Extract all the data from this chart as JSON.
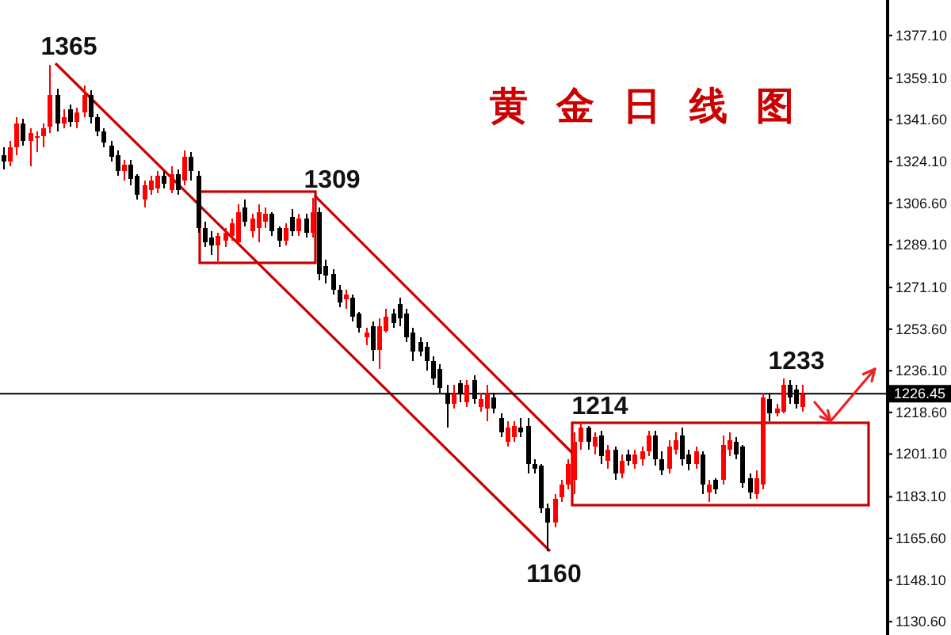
{
  "chart_data": {
    "type": "candlestick",
    "title": "黄金日线图",
    "categories": [
      null,
      null,
      null,
      null,
      null,
      null,
      null,
      null,
      null,
      null,
      null,
      null,
      null,
      null,
      null,
      null,
      null,
      null,
      null,
      null,
      null,
      null,
      null,
      null,
      null,
      null,
      null,
      null,
      null,
      null,
      null,
      null,
      null,
      null,
      null,
      null,
      null,
      null,
      null,
      null,
      null,
      null,
      null,
      null,
      null,
      null,
      null,
      null,
      null,
      null,
      null,
      null,
      null,
      null,
      null,
      null,
      null,
      null,
      null,
      null,
      null,
      null,
      null,
      null,
      null,
      null,
      null,
      null,
      null,
      null,
      null,
      null,
      null,
      null,
      null,
      null,
      null,
      null,
      null,
      null,
      null,
      null,
      null,
      null,
      null,
      null,
      null,
      null,
      null,
      null,
      null,
      null,
      null,
      null,
      null,
      null,
      null,
      null,
      null,
      null,
      null,
      null,
      null,
      null,
      null,
      null,
      null,
      null,
      null,
      null,
      null,
      null,
      null,
      null,
      null,
      null,
      null,
      null,
      null,
      null,
      null,
      null,
      null,
      null,
      null,
      null,
      null,
      null,
      null,
      null,
      null,
      null
    ],
    "ohlc": [
      [
        1327,
        1330,
        1321,
        1324
      ],
      [
        1324,
        1333,
        1322,
        1330
      ],
      [
        1330,
        1343,
        1327,
        1340
      ],
      [
        1340,
        1342,
        1331,
        1333
      ],
      [
        1333,
        1338,
        1322,
        1336
      ],
      [
        1334,
        1337,
        1328,
        1335
      ],
      [
        1335,
        1340,
        1330,
        1338
      ],
      [
        1339,
        1365,
        1336,
        1352
      ],
      [
        1352,
        1355,
        1337,
        1340
      ],
      [
        1340,
        1346,
        1338,
        1343
      ],
      [
        1346,
        1348,
        1339,
        1341
      ],
      [
        1341,
        1347,
        1338,
        1345
      ],
      [
        1345,
        1356,
        1343,
        1352
      ],
      [
        1352,
        1354,
        1340,
        1343
      ],
      [
        1343,
        1344,
        1335,
        1337
      ],
      [
        1337,
        1338,
        1330,
        1332
      ],
      [
        1331,
        1333,
        1324,
        1326
      ],
      [
        1327,
        1329,
        1318,
        1320
      ],
      [
        1320,
        1325,
        1316,
        1323
      ],
      [
        1323,
        1325,
        1314,
        1317
      ],
      [
        1318,
        1319,
        1308,
        1310
      ],
      [
        1308,
        1316,
        1305,
        1314
      ],
      [
        1312,
        1318,
        1310,
        1316
      ],
      [
        1313,
        1320,
        1311,
        1318
      ],
      [
        1318,
        1320,
        1313,
        1315
      ],
      [
        1312,
        1322,
        1311,
        1319
      ],
      [
        1319,
        1321,
        1310,
        1312
      ],
      [
        1316,
        1329,
        1314,
        1326
      ],
      [
        1326,
        1328,
        1316,
        1320
      ],
      [
        1318,
        1320,
        1294,
        1296
      ],
      [
        1296,
        1299,
        1288,
        1290
      ],
      [
        1292,
        1295,
        1285,
        1289
      ],
      [
        1289,
        1294,
        1282,
        1293
      ],
      [
        1291,
        1296,
        1288,
        1294
      ],
      [
        1293,
        1300,
        1291,
        1298
      ],
      [
        1290,
        1306,
        1289,
        1303
      ],
      [
        1305,
        1308,
        1297,
        1299
      ],
      [
        1295,
        1302,
        1292,
        1300
      ],
      [
        1296,
        1306,
        1290,
        1303
      ],
      [
        1299,
        1305,
        1296,
        1302
      ],
      [
        1302,
        1303,
        1293,
        1295
      ],
      [
        1296,
        1297,
        1288,
        1291
      ],
      [
        1291,
        1298,
        1289,
        1296
      ],
      [
        1301,
        1304,
        1293,
        1295
      ],
      [
        1295,
        1302,
        1293,
        1300
      ],
      [
        1300,
        1302,
        1292,
        1294
      ],
      [
        1294,
        1309,
        1292,
        1303
      ],
      [
        1303,
        1305,
        1274,
        1277
      ],
      [
        1280,
        1283,
        1273,
        1276
      ],
      [
        1277,
        1279,
        1268,
        1270
      ],
      [
        1270,
        1272,
        1263,
        1265
      ],
      [
        1266,
        1270,
        1262,
        1268
      ],
      [
        1267,
        1268,
        1257,
        1259
      ],
      [
        1260,
        1261,
        1252,
        1254
      ],
      [
        1250,
        1254,
        1247,
        1252
      ],
      [
        1255,
        1257,
        1240,
        1245
      ],
      [
        1245,
        1258,
        1237,
        1255
      ],
      [
        1253,
        1262,
        1252,
        1259
      ],
      [
        1260,
        1262,
        1254,
        1256
      ],
      [
        1264,
        1267,
        1255,
        1258
      ],
      [
        1260,
        1262,
        1248,
        1250
      ],
      [
        1252,
        1254,
        1240,
        1244
      ],
      [
        1248,
        1250,
        1242,
        1244
      ],
      [
        1246,
        1248,
        1236,
        1240
      ],
      [
        1240,
        1242,
        1230,
        1233
      ],
      [
        1237,
        1239,
        1227,
        1229
      ],
      [
        1227,
        1230,
        1212,
        1222
      ],
      [
        1222,
        1230,
        1220,
        1226
      ],
      [
        1231,
        1232,
        1223,
        1226
      ],
      [
        1223,
        1232,
        1221,
        1230
      ],
      [
        1232,
        1234,
        1222,
        1224
      ],
      [
        1221,
        1227,
        1219,
        1224
      ],
      [
        1220,
        1230,
        1215,
        1227
      ],
      [
        1225,
        1227,
        1218,
        1220
      ],
      [
        1216,
        1218,
        1208,
        1210
      ],
      [
        1206,
        1215,
        1204,
        1212
      ],
      [
        1208,
        1215,
        1206,
        1213
      ],
      [
        1212,
        1216,
        1208,
        1210
      ],
      [
        1213,
        1216,
        1193,
        1197
      ],
      [
        1197,
        1199,
        1193,
        1195
      ],
      [
        1196,
        1197,
        1176,
        1178
      ],
      [
        1178,
        1180,
        1160,
        1172
      ],
      [
        1172,
        1184,
        1170,
        1182
      ],
      [
        1183,
        1190,
        1181,
        1188
      ],
      [
        1188,
        1199,
        1186,
        1197
      ],
      [
        1190,
        1210,
        1184,
        1206
      ],
      [
        1206,
        1214,
        1203,
        1212
      ],
      [
        1212,
        1213,
        1203,
        1206
      ],
      [
        1204,
        1210,
        1201,
        1208
      ],
      [
        1209,
        1211,
        1197,
        1200
      ],
      [
        1198,
        1205,
        1195,
        1203
      ],
      [
        1203,
        1204,
        1190,
        1193
      ],
      [
        1193,
        1201,
        1191,
        1198
      ],
      [
        1201,
        1203,
        1196,
        1198
      ],
      [
        1197,
        1203,
        1195,
        1201
      ],
      [
        1199,
        1204,
        1196,
        1202
      ],
      [
        1202,
        1211,
        1200,
        1209
      ],
      [
        1209,
        1211,
        1196,
        1199
      ],
      [
        1199,
        1202,
        1192,
        1194
      ],
      [
        1195,
        1207,
        1193,
        1204
      ],
      [
        1203,
        1210,
        1201,
        1207
      ],
      [
        1209,
        1212,
        1196,
        1199
      ],
      [
        1201,
        1203,
        1194,
        1197
      ],
      [
        1197,
        1204,
        1195,
        1202
      ],
      [
        1201,
        1202,
        1184,
        1188
      ],
      [
        1185,
        1190,
        1181,
        1188
      ],
      [
        1190,
        1191,
        1184,
        1186
      ],
      [
        1190,
        1209,
        1188,
        1205
      ],
      [
        1203,
        1210,
        1200,
        1207
      ],
      [
        1206,
        1208,
        1199,
        1201
      ],
      [
        1204,
        1205,
        1187,
        1189
      ],
      [
        1191,
        1193,
        1182,
        1185
      ],
      [
        1184,
        1194,
        1182,
        1191
      ],
      [
        1188,
        1227,
        1186,
        1225
      ],
      [
        1224,
        1226,
        1215,
        1218
      ],
      [
        1218,
        1222,
        1217,
        1220
      ],
      [
        1219,
        1233,
        1218,
        1230
      ],
      [
        1230,
        1232,
        1222,
        1225
      ],
      [
        1228,
        1230,
        1220,
        1222
      ],
      [
        1221,
        1230,
        1219,
        1226
      ],
      null,
      null,
      null,
      null,
      null,
      null,
      null,
      null,
      null,
      null,
      null,
      null
    ],
    "colors": [
      "#000000",
      "#ff0000",
      "#ff0000",
      "#000000",
      "#ff0000",
      "#ff0000",
      "#ff0000",
      "#ff0000",
      "#000000",
      "#ff0000",
      "#000000",
      "#ff0000",
      "#ff0000",
      "#000000",
      "#000000",
      "#000000",
      "#000000",
      "#000000",
      "#ff0000",
      "#000000",
      "#000000",
      "#ff0000",
      "#ff0000",
      "#ff0000",
      "#000000",
      "#ff0000",
      "#000000",
      "#ff0000",
      "#000000",
      "#000000",
      "#000000",
      "#000000",
      "#ff0000",
      "#ff0000",
      "#ff0000",
      "#ff0000",
      "#000000",
      "#ff0000",
      "#ff0000",
      "#ff0000",
      "#000000",
      "#000000",
      "#ff0000",
      "#000000",
      "#ff0000",
      "#000000",
      "#ff0000",
      "#000000",
      "#000000",
      "#000000",
      "#000000",
      "#ff0000",
      "#000000",
      "#000000",
      "#ff0000",
      "#000000",
      "#ff0000",
      "#ff0000",
      "#000000",
      "#000000",
      "#000000",
      "#000000",
      "#000000",
      "#000000",
      "#000000",
      "#000000",
      "#000000",
      "#ff0000",
      "#000000",
      "#ff0000",
      "#000000",
      "#ff0000",
      "#ff0000",
      "#000000",
      "#000000",
      "#ff0000",
      "#ff0000",
      "#000000",
      "#000000",
      "#000000",
      "#000000",
      "#000000",
      "#ff0000",
      "#ff0000",
      "#ff0000",
      "#ff0000",
      "#ff0000",
      "#000000",
      "#ff0000",
      "#000000",
      "#ff0000",
      "#000000",
      "#ff0000",
      "#000000",
      "#ff0000",
      "#ff0000",
      "#ff0000",
      "#000000",
      "#000000",
      "#ff0000",
      "#ff0000",
      "#000000",
      "#000000",
      "#ff0000",
      "#000000",
      "#ff0000",
      "#000000",
      "#ff0000",
      "#ff0000",
      "#000000",
      "#000000",
      "#000000",
      "#ff0000",
      "#ff0000",
      "#000000",
      "#ff0000",
      "#ff0000",
      "#000000",
      "#000000",
      "#ff0000",
      null,
      null,
      null,
      null,
      null,
      null,
      null,
      null,
      null,
      null,
      null,
      null
    ],
    "ylim": [
      1125,
      1392
    ],
    "yticks": [
      {
        "value": 1130.6,
        "label": "1130.60"
      },
      {
        "value": 1148.1,
        "label": "1148.10"
      },
      {
        "value": 1165.6,
        "label": "1165.60"
      },
      {
        "value": 1183.1,
        "label": "1183.10"
      },
      {
        "value": 1201.1,
        "label": "1201.10"
      },
      {
        "value": 1218.6,
        "label": "1218.60"
      },
      {
        "value": 1236.1,
        "label": "1236.10"
      },
      {
        "value": 1253.6,
        "label": "1253.60"
      },
      {
        "value": 1271.1,
        "label": "1271.10"
      },
      {
        "value": 1289.1,
        "label": "1289.10"
      },
      {
        "value": 1306.6,
        "label": "1306.60"
      },
      {
        "value": 1324.1,
        "label": "1324.10"
      },
      {
        "value": 1341.6,
        "label": "1341.60"
      },
      {
        "value": 1359.1,
        "label": "1359.10"
      },
      {
        "value": 1377.1,
        "label": "1377.10"
      }
    ],
    "tick_labels": "y",
    "ref_lines": [
      {
        "axis": "y",
        "value": 1226.45,
        "label": "1226.45",
        "color": "#000000"
      }
    ],
    "annotations": [
      "1365",
      "1309",
      "1214",
      "1160",
      "1233"
    ]
  }
}
